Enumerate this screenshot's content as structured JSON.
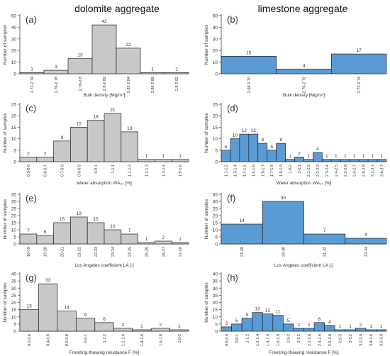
{
  "columns": {
    "left_title": "dolomite aggregate",
    "right_title": "limestone aggregate"
  },
  "colors": {
    "dolomite_fill": "#c8c8c8",
    "limestone_fill": "#5b9bd5",
    "edge": "#222222"
  },
  "chart_data": [
    {
      "panel": "(a)",
      "type": "bar",
      "column": "left",
      "xlabel": "Bulk density [Mg/m³]",
      "ylabel": "Number of samples",
      "ylim": [
        0,
        50
      ],
      "yticks": [
        0,
        10,
        20,
        30,
        40,
        50
      ],
      "categories": [
        "2.72-2.74",
        "2.76-2.78",
        "2.78-2.8",
        "2.8-2.82",
        "2.82-2.84",
        "2.86-2.88",
        "2.9-2.92"
      ],
      "values": [
        1,
        3,
        13,
        42,
        22,
        1,
        1
      ],
      "data_labels": [
        "1",
        "3",
        "13",
        "42",
        "22",
        "1",
        "1"
      ]
    },
    {
      "panel": "(b)",
      "type": "bar",
      "column": "right",
      "xlabel": "Bulk density [Mg/m³]",
      "ylabel": "Number of samples",
      "ylim": [
        0,
        50
      ],
      "yticks": [
        0,
        10,
        20,
        30,
        40,
        50
      ],
      "categories": [
        "2.68-2.70",
        "2.70-2.72",
        "2.72-2.74"
      ],
      "values": [
        15,
        4,
        17
      ],
      "data_labels": [
        "15",
        "4",
        "17"
      ]
    },
    {
      "panel": "(c)",
      "type": "bar",
      "column": "left",
      "xlabel": "Water absorption WA₂₄ [%]",
      "ylabel": "Number of samples",
      "ylim": [
        0,
        25
      ],
      "yticks": [
        0,
        5,
        10,
        15,
        20,
        25
      ],
      "categories": [
        "0.5-0.6",
        "0.6-0.7",
        "0.7-0.8",
        "0.8-0.9",
        "0.9-1",
        "1-1.1",
        "1.1-1.2",
        "1.2-1.3",
        "1.3-1.4",
        "1.5-1.6"
      ],
      "values": [
        2,
        2,
        9,
        15,
        18,
        21,
        13,
        1,
        1,
        1
      ],
      "data_labels": [
        "2",
        "2",
        "9",
        "15",
        "18",
        "21",
        "13",
        "1",
        "1",
        "1"
      ]
    },
    {
      "panel": "(d)",
      "type": "bar",
      "column": "right",
      "xlabel": "Water absorption WA₂₄ [%]",
      "ylabel": "Number of samples",
      "ylim": [
        0,
        25
      ],
      "yticks": [
        0,
        5,
        10,
        15,
        20,
        25
      ],
      "categories": [
        "1.1-1.2",
        "1.3-1.4",
        "1.4-1.5",
        "1.5-1.6",
        "1.6-1.7",
        "1.7-1.8",
        "1.8-1.9",
        "1.9-2",
        "2-2.1",
        "2.1-2.2",
        "2.2-2.3",
        "2.3-2.4",
        "2.4-2.5",
        "2.5-2.6",
        "2.6-2.7",
        "2.8-2.9",
        "3.2-3.3",
        "3.6-3.7"
      ],
      "values": [
        5,
        10,
        12,
        12,
        8,
        5,
        8,
        1,
        2,
        1,
        4,
        1,
        1,
        1,
        1,
        1,
        1,
        1
      ],
      "data_labels": [
        "5",
        "10",
        "12",
        "12",
        "8",
        "5",
        "8",
        "1",
        "2",
        "1",
        "4",
        "1",
        "1",
        "1",
        "1",
        "1",
        "1",
        "1"
      ]
    },
    {
      "panel": "(e)",
      "type": "bar",
      "column": "left",
      "xlabel": "Los Angeles coefficient LA [-]",
      "ylabel": "Number of samples",
      "ylim": [
        0,
        35
      ],
      "yticks": [
        0,
        5,
        10,
        15,
        20,
        25,
        30,
        35
      ],
      "categories": [
        "18-19",
        "19-20",
        "20-21",
        "21-22",
        "22-23",
        "23-24",
        "24-25",
        "25-26",
        "26-27",
        "27-28"
      ],
      "values": [
        7,
        6,
        15,
        19,
        15,
        10,
        7,
        1,
        2,
        1
      ],
      "data_labels": [
        "7",
        "6",
        "15",
        "19",
        "15",
        "10",
        "7",
        "1",
        "2",
        "1"
      ]
    },
    {
      "panel": "(f)",
      "type": "bar",
      "column": "right",
      "xlabel": "Los Angeles coefficient LA [-]",
      "ylabel": "Number of samples",
      "ylim": [
        0,
        35
      ],
      "yticks": [
        0,
        5,
        10,
        15,
        20,
        25,
        30,
        35
      ],
      "categories": [
        "27-28",
        "29-30",
        "31-32",
        "33-34"
      ],
      "values": [
        14,
        30,
        7,
        4
      ],
      "data_labels": [
        "14",
        "30",
        "7",
        "4"
      ]
    },
    {
      "panel": "(g)",
      "type": "bar",
      "column": "left",
      "xlabel": "Freezing-thawing resistance F [%]",
      "ylabel": "Number of samples",
      "ylim": [
        0,
        40
      ],
      "yticks": [
        0,
        5,
        10,
        15,
        20,
        25,
        30,
        35,
        40
      ],
      "categories": [
        "0.2-0.4",
        "0.4-0.6",
        "0.6-0.8",
        "0.8-1",
        "1-1.2",
        "1.2-1.4",
        "1.4-1.6",
        "1.6-1.8",
        "1.8-2"
      ],
      "values": [
        15,
        33,
        14,
        9,
        6,
        2,
        1,
        2,
        1
      ],
      "data_labels": [
        "15",
        "33",
        "14",
        "9",
        "6",
        "2",
        "1",
        "2",
        "1"
      ]
    },
    {
      "panel": "(h)",
      "type": "bar",
      "column": "right",
      "xlabel": "Freezing-thawing resistance F [%]",
      "ylabel": "Number of samples",
      "ylim": [
        0,
        40
      ],
      "yticks": [
        0,
        5,
        10,
        15,
        20,
        25,
        30,
        35,
        40
      ],
      "categories": [
        "0.6-0.8",
        "0.8-1",
        "1-1.2",
        "1.2-1.4",
        "1.4-1.6",
        "1.6-1.8",
        "1.8-2",
        "2-2.2",
        "2.2-2.4",
        "2.4-2.6",
        "2.6-2.8",
        "2.8-3",
        "3-3.2",
        "3.2-3.4",
        "3.4-3.6",
        "3.6-3.8"
      ],
      "values": [
        3,
        5,
        9,
        13,
        12,
        11,
        5,
        2,
        2,
        6,
        4,
        1,
        1,
        2,
        1,
        1
      ],
      "data_labels": [
        "3",
        "5",
        "9",
        "13",
        "12",
        "11",
        "5",
        "2",
        "2",
        "6",
        "4",
        "1",
        "1",
        "2",
        "1",
        "1"
      ]
    }
  ]
}
